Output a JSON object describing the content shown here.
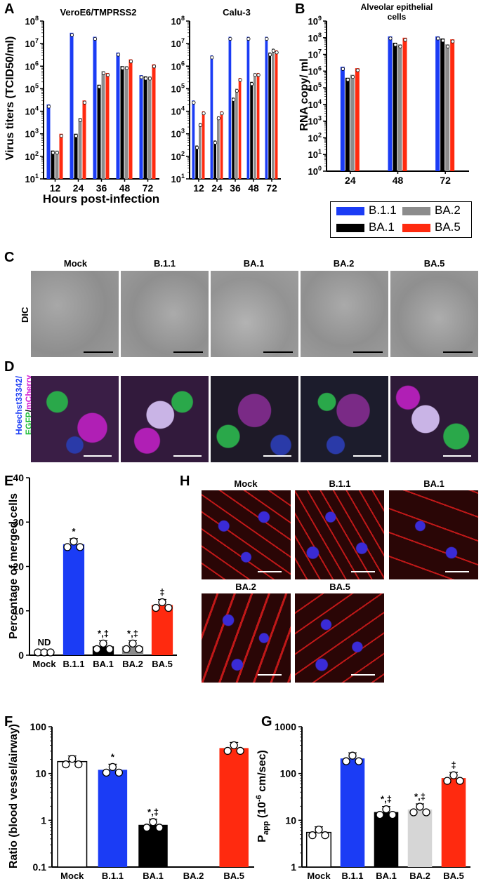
{
  "panels": {
    "A": "A",
    "B": "B",
    "C": "C",
    "D": "D",
    "E": "E",
    "F": "F",
    "G": "G",
    "H": "H"
  },
  "colors": {
    "B.1.1": "#1b3cf5",
    "BA.1": "#000000",
    "BA.2": "#8c8c8c",
    "BA.5": "#ff2a0f",
    "BA.2_light": "#d6d6d6",
    "Mock_fill": "#ffffff"
  },
  "legend": {
    "items": [
      {
        "name": "B.1.1",
        "color": "#1b3cf5"
      },
      {
        "name": "BA.2",
        "color": "#8c8c8c"
      },
      {
        "name": "BA.1",
        "color": "#000000"
      },
      {
        "name": "BA.5",
        "color": "#ff2a0f"
      }
    ]
  },
  "panel_C": {
    "row_label": "DIC",
    "columns": [
      "Mock",
      "B.1.1",
      "BA.1",
      "BA.2",
      "BA.5"
    ]
  },
  "panel_D": {
    "row_label_parts": [
      "Hoechst33342/",
      "EGFP",
      "/",
      "mCherry"
    ]
  },
  "panel_H": {
    "columns": [
      "Mock",
      "B.1.1",
      "BA.1",
      "BA.2",
      "BA.5"
    ]
  },
  "chart_data": [
    {
      "id": "A1",
      "type": "bar",
      "title": "VeroE6/TMPRSS2",
      "ylabel": "Virus titers (TCID50/ml)",
      "xlabel": "Hours post-infection",
      "yscale": "log",
      "ylim": [
        10,
        100000000
      ],
      "yticks": [
        "10^1",
        "10^2",
        "10^3",
        "10^4",
        "10^5",
        "10^6",
        "10^7",
        "10^8"
      ],
      "categories": [
        "12",
        "24",
        "36",
        "48",
        "72"
      ],
      "series": [
        {
          "name": "B.1.1",
          "values": [
            20000,
            30000000,
            20000000,
            4000000,
            400000
          ]
        },
        {
          "name": "BA.1",
          "values": [
            180,
            1000,
            150000,
            1000000,
            350000
          ]
        },
        {
          "name": "BA.2",
          "values": [
            180,
            5000,
            600000,
            1000000,
            350000
          ]
        },
        {
          "name": "BA.5",
          "values": [
            1000,
            30000,
            500000,
            2000000,
            1200000
          ]
        }
      ],
      "annotations": [
        "‡",
        "‡‡",
        "‡",
        "*",
        "‡",
        "†‡",
        "‡",
        "‡‡",
        "‡"
      ]
    },
    {
      "id": "A2",
      "type": "bar",
      "title": "Calu-3",
      "yscale": "log",
      "ylim": [
        10,
        100000000
      ],
      "yticks": [
        "10^1",
        "10^2",
        "10^3",
        "10^4",
        "10^5",
        "10^6",
        "10^7",
        "10^8"
      ],
      "categories": [
        "12",
        "24",
        "36",
        "48",
        "72"
      ],
      "series": [
        {
          "name": "B.1.1",
          "values": [
            30000,
            3000000,
            20000000,
            20000000,
            20000000
          ]
        },
        {
          "name": "BA.1",
          "values": [
            300,
            500,
            40000,
            200000,
            4000000
          ]
        },
        {
          "name": "BA.2",
          "values": [
            3000,
            6000,
            100000,
            500000,
            6000000
          ]
        },
        {
          "name": "BA.5",
          "values": [
            10000,
            10000,
            300000,
            500000,
            5000000
          ]
        }
      ],
      "annotations": [
        "‡",
        "‡",
        "‡",
        "‡",
        "‡‡",
        "‡",
        "‡"
      ]
    },
    {
      "id": "B",
      "type": "bar",
      "title": "Alveolar epithelial cells",
      "ylabel": "RNA copy/ ml",
      "yscale": "log",
      "ylim": [
        1,
        1000000000
      ],
      "yticks": [
        "10^0",
        "10^1",
        "10^2",
        "10^3",
        "10^4",
        "10^5",
        "10^6",
        "10^7",
        "10^8",
        "10^9"
      ],
      "categories": [
        "24",
        "48",
        "72"
      ],
      "series": [
        {
          "name": "B.1.1",
          "values": [
            1800000,
            120000000,
            120000000
          ]
        },
        {
          "name": "BA.1",
          "values": [
            400000,
            50000000,
            90000000
          ]
        },
        {
          "name": "BA.2",
          "values": [
            600000,
            40000000,
            40000000
          ]
        },
        {
          "name": "BA.5",
          "values": [
            1500000,
            100000000,
            80000000
          ]
        }
      ]
    },
    {
      "id": "E",
      "type": "bar",
      "ylabel": "Percentage of merged cells",
      "ylim": [
        0,
        40
      ],
      "yticks": [
        "0",
        "10",
        "20",
        "30",
        "40"
      ],
      "categories": [
        "Mock",
        "B.1.1",
        "BA.1",
        "BA.2",
        "BA.5"
      ],
      "values": [
        0,
        25,
        2,
        2,
        11.3
      ],
      "annotations": [
        "ND",
        "*",
        "*,‡",
        "*,‡",
        "‡"
      ]
    },
    {
      "id": "F",
      "type": "bar",
      "ylabel": "Ratio (blood vessel/airway)",
      "yscale": "log",
      "ylim": [
        0.1,
        100
      ],
      "yticks": [
        "0.1",
        "1",
        "10",
        "100"
      ],
      "categories": [
        "Mock",
        "B.1.1",
        "BA.1",
        "BA.2",
        "BA.5"
      ],
      "values": [
        18,
        12,
        0.8,
        null,
        35
      ],
      "annotations": [
        "",
        "*",
        "*,‡",
        "",
        ""
      ]
    },
    {
      "id": "G",
      "type": "bar",
      "ylabel": "Papp (10-6 cm/sec)",
      "yscale": "log",
      "ylim": [
        1,
        1000
      ],
      "yticks": [
        "1",
        "10",
        "100",
        "1000"
      ],
      "categories": [
        "Mock",
        "B.1.1",
        "BA.1",
        "BA.2",
        "BA.5"
      ],
      "values": [
        5.5,
        210,
        15,
        17,
        80
      ],
      "annotations": [
        "",
        "",
        "*,‡",
        "*,‡",
        "‡"
      ]
    }
  ]
}
